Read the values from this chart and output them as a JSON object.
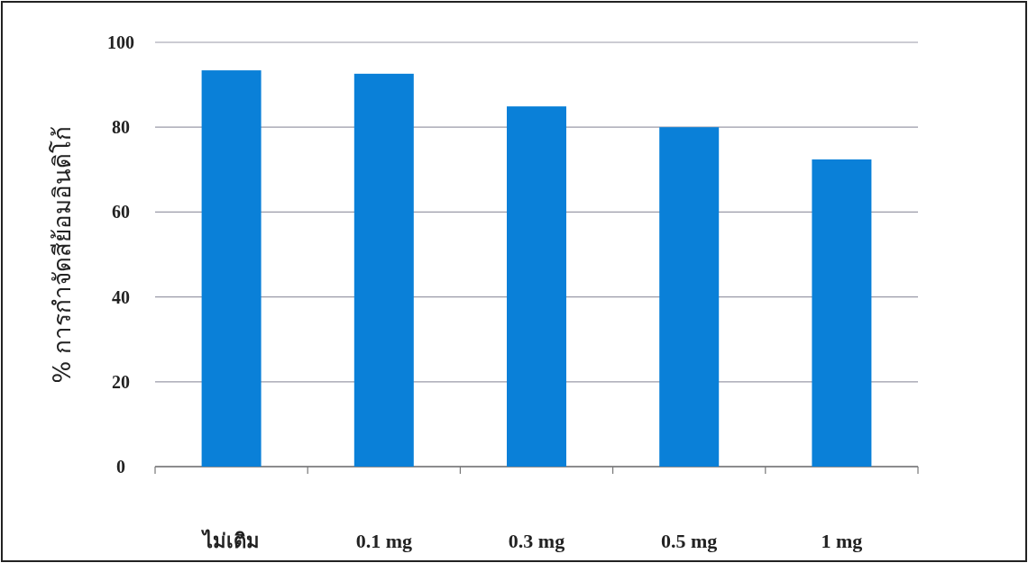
{
  "chart_data": {
    "type": "bar",
    "ylabel": "% การกำจัดสีย้อมอินดิโก้",
    "categories": [
      "ไม่เติม",
      "0.1 mg",
      "0.3 mg",
      "0.5 mg",
      "1 mg"
    ],
    "values": [
      93.4,
      92.6,
      84.9,
      80.0,
      72.4
    ],
    "color": "#0a80d8",
    "ylim": [
      0,
      100
    ],
    "yticks": [
      0,
      20,
      40,
      60,
      80,
      100
    ],
    "grid": "y"
  }
}
